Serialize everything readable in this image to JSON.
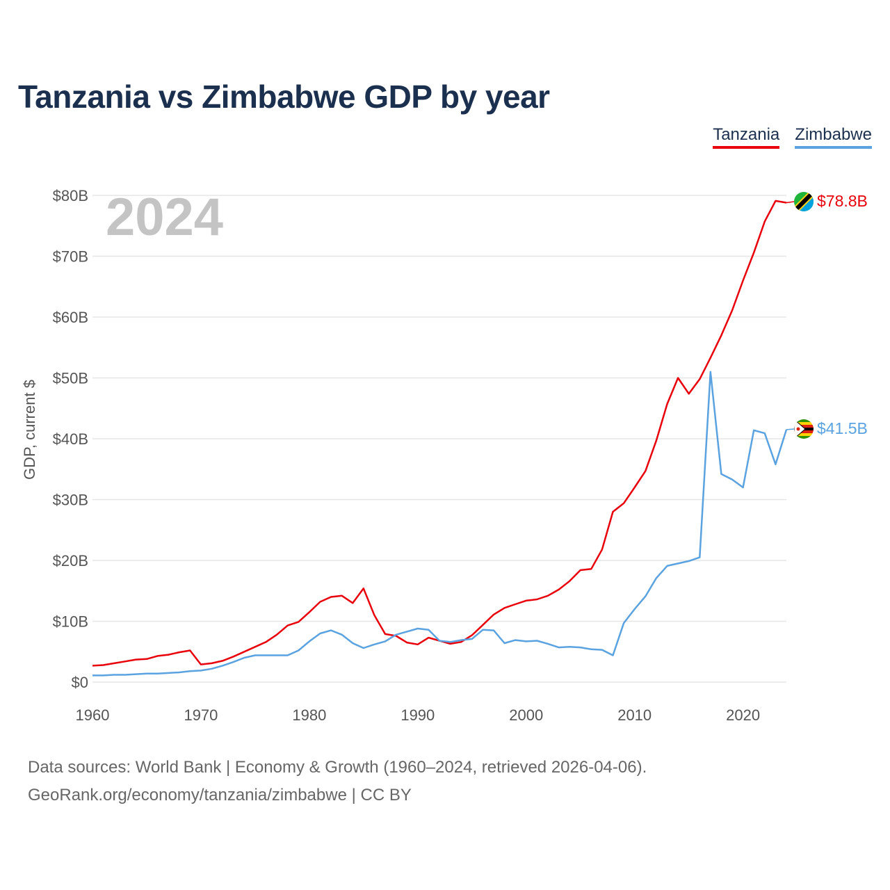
{
  "title": "Tanzania vs Zimbabwe GDP by year",
  "legend": {
    "tanzania": "Tanzania",
    "zimbabwe": "Zimbabwe"
  },
  "year_display": "2024",
  "source": {
    "line1": "Data sources: World Bank | Economy & Growth (1960–2024, retrieved 2026-04-06).",
    "line2": "GeoRank.org/economy/tanzania/zimbabwe | CC BY"
  },
  "end_labels": {
    "tanzania": "$78.8B",
    "zimbabwe": "$41.5B"
  },
  "colors": {
    "tanzania": "#e8000b",
    "zimbabwe": "#5aa2e0",
    "grid": "#e6e6e6"
  },
  "chart_data": {
    "type": "line",
    "title": "Tanzania vs Zimbabwe GDP by year",
    "xlabel": "",
    "ylabel": "GDP, current $",
    "xlim": [
      1960,
      2024
    ],
    "ylim": [
      0,
      80
    ],
    "y_unit": "billion USD",
    "x_ticks": [
      1960,
      1970,
      1980,
      1990,
      2000,
      2010,
      2020
    ],
    "y_ticks": [
      0,
      10,
      20,
      30,
      40,
      50,
      60,
      70,
      80
    ],
    "y_tick_labels": [
      "$0",
      "$10B",
      "$20B",
      "$30B",
      "$40B",
      "$50B",
      "$60B",
      "$70B",
      "$80B"
    ],
    "x": [
      1960,
      1961,
      1962,
      1963,
      1964,
      1965,
      1966,
      1967,
      1968,
      1969,
      1970,
      1971,
      1972,
      1973,
      1974,
      1975,
      1976,
      1977,
      1978,
      1979,
      1980,
      1981,
      1982,
      1983,
      1984,
      1985,
      1986,
      1987,
      1988,
      1989,
      1990,
      1991,
      1992,
      1993,
      1994,
      1995,
      1996,
      1997,
      1998,
      1999,
      2000,
      2001,
      2002,
      2003,
      2004,
      2005,
      2006,
      2007,
      2008,
      2009,
      2010,
      2011,
      2012,
      2013,
      2014,
      2015,
      2016,
      2017,
      2018,
      2019,
      2020,
      2021,
      2022,
      2023,
      2024
    ],
    "series": [
      {
        "name": "Tanzania",
        "values": [
          2.7,
          2.8,
          3.1,
          3.4,
          3.7,
          3.8,
          4.3,
          4.5,
          4.9,
          5.2,
          2.9,
          3.1,
          3.5,
          4.2,
          5.0,
          5.8,
          6.6,
          7.8,
          9.3,
          9.9,
          11.5,
          13.2,
          14.0,
          14.2,
          13.0,
          15.4,
          11.0,
          7.9,
          7.6,
          6.5,
          6.2,
          7.3,
          6.8,
          6.3,
          6.6,
          7.7,
          9.4,
          11.1,
          12.2,
          12.8,
          13.4,
          13.6,
          14.2,
          15.2,
          16.6,
          18.4,
          18.6,
          21.8,
          28.0,
          29.4,
          32.0,
          34.7,
          39.7,
          45.7,
          50.0,
          47.4,
          49.8,
          53.3,
          57.0,
          61.1,
          66.0,
          70.6,
          75.7,
          79.1,
          78.8
        ]
      },
      {
        "name": "Zimbabwe",
        "values": [
          1.1,
          1.1,
          1.2,
          1.2,
          1.3,
          1.4,
          1.4,
          1.5,
          1.6,
          1.8,
          1.9,
          2.2,
          2.7,
          3.3,
          4.0,
          4.4,
          4.4,
          4.4,
          4.4,
          5.2,
          6.7,
          8.0,
          8.5,
          7.8,
          6.4,
          5.6,
          6.2,
          6.7,
          7.8,
          8.3,
          8.8,
          8.6,
          6.8,
          6.6,
          6.9,
          7.1,
          8.6,
          8.5,
          6.4,
          6.9,
          6.7,
          6.8,
          6.3,
          5.7,
          5.8,
          5.7,
          5.4,
          5.3,
          4.4,
          9.7,
          12.0,
          14.1,
          17.1,
          19.1,
          19.5,
          19.9,
          20.5,
          51.0,
          34.2,
          33.3,
          32.0,
          41.4,
          40.9,
          35.8,
          41.5
        ]
      }
    ]
  }
}
